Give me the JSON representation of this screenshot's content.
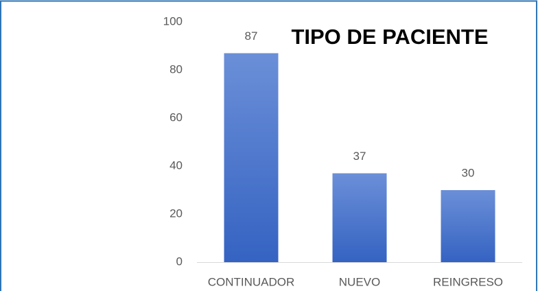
{
  "chart_data": {
    "type": "bar",
    "title": "TIPO DE PACIENTE",
    "categories": [
      "CONTINUADOR",
      "NUEVO",
      "REINGRESO"
    ],
    "values": [
      87,
      37,
      30
    ],
    "color": "#4472c4",
    "ylim": [
      0,
      100
    ],
    "yticks": [
      0,
      20,
      40,
      60,
      80,
      100
    ],
    "grid": false
  }
}
